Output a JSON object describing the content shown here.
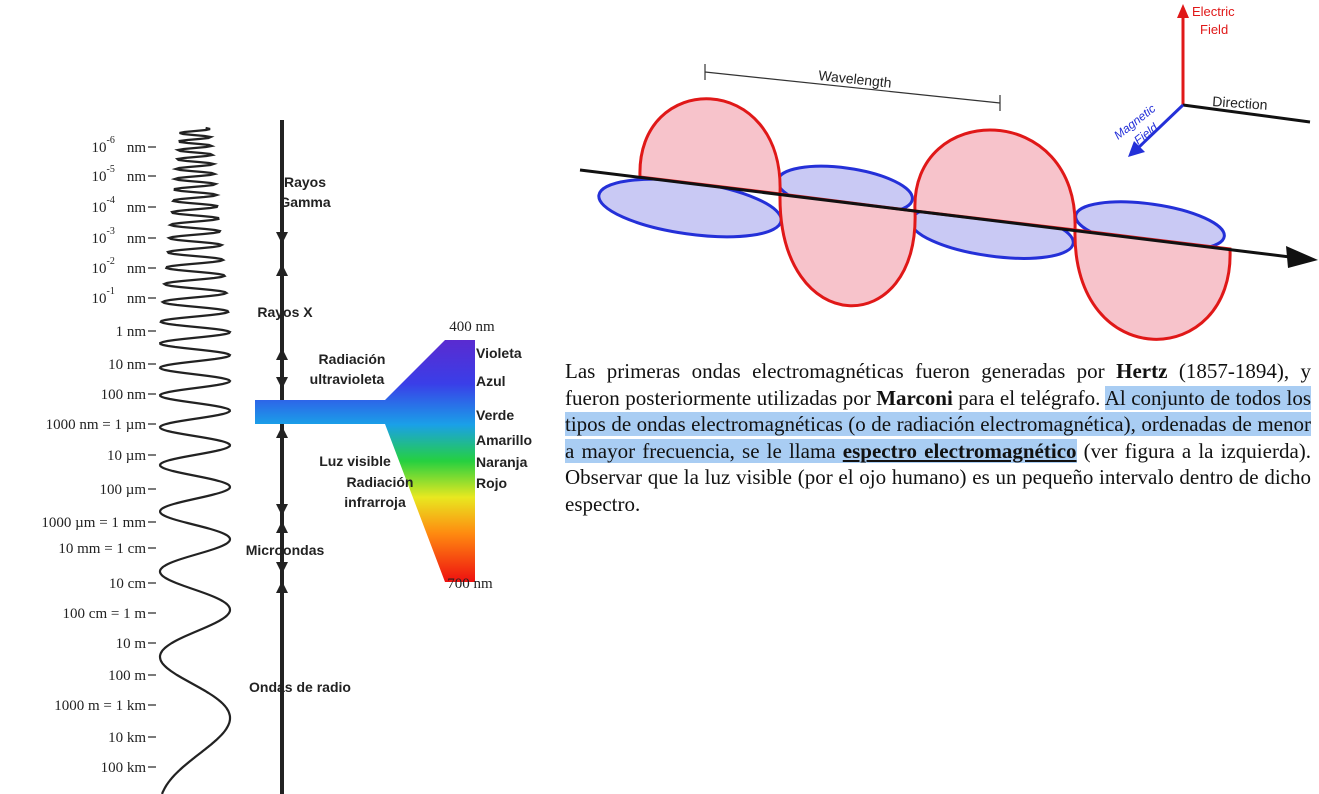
{
  "spectrum": {
    "scale": [
      {
        "base": "10",
        "exp": "-6",
        "unit": "nm"
      },
      {
        "base": "10",
        "exp": "-5",
        "unit": "nm"
      },
      {
        "base": "10",
        "exp": "-4",
        "unit": "nm"
      },
      {
        "base": "10",
        "exp": "-3",
        "unit": "nm"
      },
      {
        "base": "10",
        "exp": "-2",
        "unit": "nm"
      },
      {
        "base": "10",
        "exp": "-1",
        "unit": "nm"
      },
      {
        "text": "1 nm"
      },
      {
        "text": "10 nm"
      },
      {
        "text": "100 nm"
      },
      {
        "text": "1000 nm = 1 µm"
      },
      {
        "text": "10 µm"
      },
      {
        "text": "100 µm"
      },
      {
        "text": "1000 µm = 1 mm"
      },
      {
        "text": "10 mm = 1 cm"
      },
      {
        "text": "10 cm"
      },
      {
        "text": "100 cm = 1 m"
      },
      {
        "text": "10 m"
      },
      {
        "text": "100 m"
      },
      {
        "text": "1000 m = 1 km"
      },
      {
        "text": "10 km"
      },
      {
        "text": "100 km"
      }
    ],
    "bands": [
      {
        "lines": [
          "Rayos",
          "Gamma"
        ]
      },
      {
        "lines": [
          "Rayos X"
        ]
      },
      {
        "lines": [
          "Radiación",
          "ultravioleta"
        ]
      },
      {
        "lines": [
          "Luz visible"
        ]
      },
      {
        "lines": [
          "Radiación",
          "infrarroja"
        ]
      },
      {
        "lines": [
          "Microondas"
        ]
      },
      {
        "lines": [
          "Ondas de radio"
        ]
      }
    ],
    "visible": {
      "top": "400 nm",
      "bottom": "700 nm",
      "colors": [
        "Violeta",
        "Azul",
        "Verde",
        "Amarillo",
        "Naranja",
        "Rojo"
      ]
    }
  },
  "wave": {
    "wavelength": "Wavelength",
    "electric_field": [
      "Electric",
      "Field"
    ],
    "magnetic_field": [
      "Magnetic",
      "Field"
    ],
    "direction": "Direction"
  },
  "paragraph": [
    {
      "text": "Las primeras ondas electromagnéticas fueron generadas por ",
      "bold": false,
      "highlight": false,
      "underline": false
    },
    {
      "text": "Hertz",
      "bold": true,
      "highlight": false,
      "underline": false
    },
    {
      "text": " (1857-1894), y fueron posteriormente utilizadas por ",
      "bold": false,
      "highlight": false,
      "underline": false
    },
    {
      "text": "Marconi",
      "bold": true,
      "highlight": false,
      "underline": false
    },
    {
      "text": " para el telégrafo. ",
      "bold": false,
      "highlight": false,
      "underline": false
    },
    {
      "text": "Al conjunto de todos los tipos de ondas electromagnéticas (o de radiación electromagnética), ordenadas de menor a mayor frecuencia, se le llama ",
      "bold": false,
      "highlight": true,
      "underline": false
    },
    {
      "text": "espectro electromagnético",
      "bold": true,
      "highlight": true,
      "underline": true
    },
    {
      "text": " (ver figura a la izquierda). Observar que la luz visible (por el ojo humano) es un pequeño intervalo dentro de dicho espectro.",
      "bold": false,
      "highlight": false,
      "underline": false
    }
  ]
}
